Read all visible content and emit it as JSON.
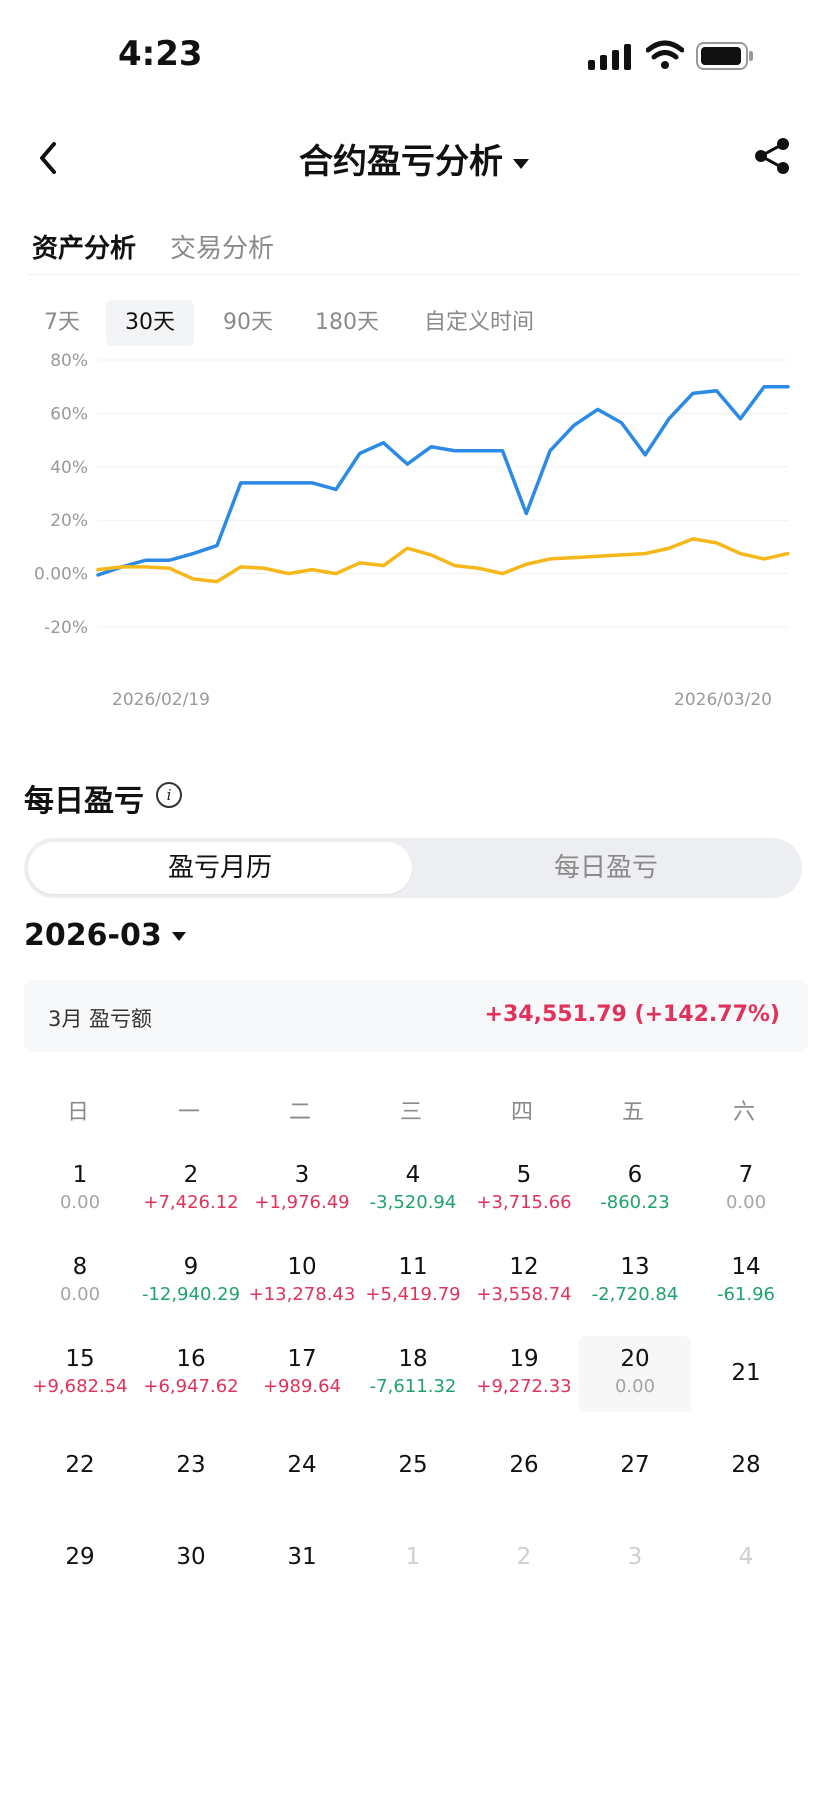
{
  "status_bar": {
    "time": "4:23"
  },
  "nav": {
    "title": "合约盈亏分析"
  },
  "tabs": {
    "active": "资产分析",
    "inactive": "交易分析"
  },
  "periods": [
    "7天",
    "30天",
    "90天",
    "180天",
    "自定义时间"
  ],
  "active_period": "30天",
  "chart_data": {
    "type": "line",
    "y_ticks": [
      "80%",
      "60%",
      "40%",
      "20%",
      "0.00%",
      "-20%"
    ],
    "ylim": [
      -20,
      80
    ],
    "x_start_label": "2026/02/19",
    "x_end_label": "2026/03/20",
    "series": [
      {
        "color": "#2b8ae6",
        "values": [
          -0.5,
          2.5,
          5,
          5,
          7.5,
          10.5,
          34,
          34,
          34,
          34,
          31.5,
          45,
          49,
          41,
          47.5,
          46,
          46,
          46,
          22.5,
          46,
          55.5,
          61.5,
          56.5,
          44.5,
          58,
          67.5,
          68.5,
          58,
          70,
          70
        ]
      },
      {
        "color": "#f5b719",
        "values": [
          1.5,
          2.5,
          2.5,
          2,
          -2,
          -3,
          2.5,
          2,
          0,
          1.5,
          0,
          4,
          3,
          9.5,
          7,
          3,
          2,
          0,
          3.5,
          5.5,
          6,
          6.5,
          7,
          7.5,
          9.5,
          13,
          11.5,
          7.5,
          5.5,
          7.5
        ]
      }
    ]
  },
  "daily": {
    "title": "每日盈亏",
    "seg_on": "盈亏月历",
    "seg_off": "每日盈亏",
    "month": "2026-03",
    "summary_label": "3月 盈亏额",
    "summary_value": "+34,551.79 (+142.77%)",
    "weekdays": [
      "日",
      "一",
      "二",
      "三",
      "四",
      "五",
      "六"
    ],
    "days": [
      {
        "n": "1",
        "v": "0.00",
        "t": "zero"
      },
      {
        "n": "2",
        "v": "+7,426.12",
        "t": "pos"
      },
      {
        "n": "3",
        "v": "+1,976.49",
        "t": "pos"
      },
      {
        "n": "4",
        "v": "-3,520.94",
        "t": "neg"
      },
      {
        "n": "5",
        "v": "+3,715.66",
        "t": "pos"
      },
      {
        "n": "6",
        "v": "-860.23",
        "t": "neg"
      },
      {
        "n": "7",
        "v": "0.00",
        "t": "zero"
      },
      {
        "n": "8",
        "v": "0.00",
        "t": "zero"
      },
      {
        "n": "9",
        "v": "-12,940.29",
        "t": "neg"
      },
      {
        "n": "10",
        "v": "+13,278.43",
        "t": "pos"
      },
      {
        "n": "11",
        "v": "+5,419.79",
        "t": "pos"
      },
      {
        "n": "12",
        "v": "+3,558.74",
        "t": "pos"
      },
      {
        "n": "13",
        "v": "-2,720.84",
        "t": "neg"
      },
      {
        "n": "14",
        "v": "-61.96",
        "t": "neg"
      },
      {
        "n": "15",
        "v": "+9,682.54",
        "t": "pos"
      },
      {
        "n": "16",
        "v": "+6,947.62",
        "t": "pos"
      },
      {
        "n": "17",
        "v": "+989.64",
        "t": "pos"
      },
      {
        "n": "18",
        "v": "-7,611.32",
        "t": "neg"
      },
      {
        "n": "19",
        "v": "+9,272.33",
        "t": "pos"
      },
      {
        "n": "20",
        "v": "0.00",
        "t": "zero",
        "today": true
      },
      {
        "n": "21",
        "v": "",
        "t": ""
      },
      {
        "n": "22",
        "v": "",
        "t": ""
      },
      {
        "n": "23",
        "v": "",
        "t": ""
      },
      {
        "n": "24",
        "v": "",
        "t": ""
      },
      {
        "n": "25",
        "v": "",
        "t": ""
      },
      {
        "n": "26",
        "v": "",
        "t": ""
      },
      {
        "n": "27",
        "v": "",
        "t": ""
      },
      {
        "n": "28",
        "v": "",
        "t": ""
      },
      {
        "n": "29",
        "v": "",
        "t": ""
      },
      {
        "n": "30",
        "v": "",
        "t": ""
      },
      {
        "n": "31",
        "v": "",
        "t": ""
      },
      {
        "n": "1",
        "v": "",
        "t": "",
        "muted": true
      },
      {
        "n": "2",
        "v": "",
        "t": "",
        "muted": true
      },
      {
        "n": "3",
        "v": "",
        "t": "",
        "muted": true
      },
      {
        "n": "4",
        "v": "",
        "t": "",
        "muted": true
      }
    ]
  },
  "icons": {
    "back": "back-arrow-icon",
    "share": "share-icon",
    "info": "info-icon",
    "caret": "caret-down-icon"
  },
  "colors": {
    "accent_up": "#e0325a",
    "accent_down": "#1fa26b",
    "line_blue": "#2b8ae6",
    "line_yellow": "#f5b719"
  }
}
